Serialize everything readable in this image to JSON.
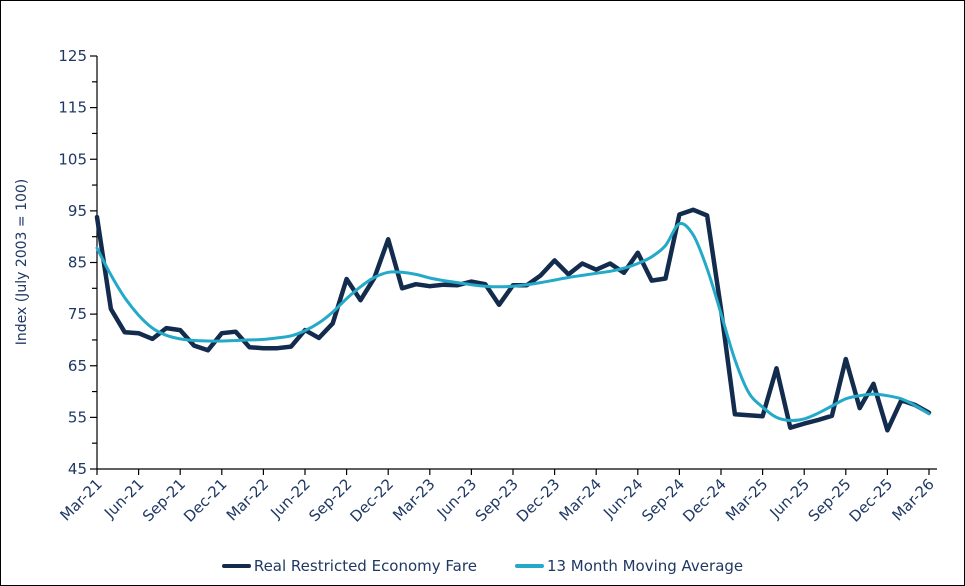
{
  "figure": {
    "background": "#FFFFFF",
    "border_color": "#000000",
    "text_color": "#1F3864"
  },
  "chart_data": {
    "type": "line",
    "title": "",
    "xlabel": "",
    "ylabel": "Index (July 2003 = 100)",
    "ylim": [
      45,
      125
    ],
    "grid": false,
    "legend_position": "bottom-center",
    "y_major_ticks": [
      45,
      55,
      65,
      75,
      85,
      95,
      105,
      115,
      125
    ],
    "y_minor_ticks": [
      50,
      60,
      70,
      80,
      90,
      100,
      110,
      120
    ],
    "x_tick_labels": [
      "Mar-21",
      "Jun-21",
      "Sep-21",
      "Dec-21",
      "Mar-22",
      "Jun-22",
      "Sep-22",
      "Dec-22",
      "Mar-23",
      "Jun-23",
      "Sep-23",
      "Dec-23",
      "Mar-24",
      "Jun-24",
      "Sep-24",
      "Dec-24",
      "Mar-25",
      "Jun-25",
      "Sep-25",
      "Dec-25",
      "Mar-26"
    ],
    "months": [
      "Mar-21",
      "Apr-21",
      "May-21",
      "Jun-21",
      "Jul-21",
      "Aug-21",
      "Sep-21",
      "Oct-21",
      "Nov-21",
      "Dec-21",
      "Jan-22",
      "Feb-22",
      "Mar-22",
      "Apr-22",
      "May-22",
      "Jun-22",
      "Jul-22",
      "Aug-22",
      "Sep-22",
      "Oct-22",
      "Nov-22",
      "Dec-22",
      "Jan-23",
      "Feb-23",
      "Mar-23",
      "Apr-23",
      "May-23",
      "Jun-23",
      "Jul-23",
      "Aug-23",
      "Sep-23",
      "Oct-23",
      "Nov-23",
      "Dec-23",
      "Jan-24",
      "Feb-24",
      "Mar-24",
      "Apr-24",
      "May-24",
      "Jun-24",
      "Jul-24",
      "Aug-24",
      "Sep-24",
      "Oct-24",
      "Nov-24",
      "Dec-24",
      "Jan-25",
      "Feb-25",
      "Mar-25",
      "Apr-25",
      "May-25",
      "Jun-25",
      "Jul-25",
      "Aug-25",
      "Sep-25",
      "Oct-25",
      "Nov-25",
      "Dec-25",
      "Jan-26",
      "Feb-26",
      "Mar-26"
    ],
    "series": [
      {
        "name": "Real Restricted Economy Fare",
        "color": "#132B4D",
        "stroke_width": 4.5,
        "smooth": false,
        "values": [
          93.8,
          76.0,
          71.5,
          71.3,
          70.2,
          72.3,
          71.9,
          68.9,
          68.0,
          71.3,
          71.6,
          68.6,
          68.4,
          68.4,
          68.7,
          71.9,
          70.4,
          73.2,
          81.8,
          77.7,
          82.0,
          89.5,
          80.0,
          80.8,
          80.4,
          80.7,
          80.6,
          81.3,
          80.8,
          76.8,
          80.6,
          80.6,
          82.5,
          85.4,
          82.7,
          84.8,
          83.6,
          84.8,
          83.0,
          86.9,
          81.5,
          81.9,
          94.3,
          95.2,
          94.1,
          76.0,
          55.6,
          55.4,
          55.2,
          64.5,
          53.0,
          53.8,
          54.5,
          55.3,
          66.3,
          56.8,
          61.5,
          52.5,
          58.3,
          57.4,
          55.9
        ]
      },
      {
        "name": "13 Month Moving Average",
        "color": "#25A9C8",
        "stroke_width": 3,
        "smooth": true,
        "values": [
          87.8,
          82.6,
          78.2,
          74.8,
          72.3,
          70.9,
          70.2,
          69.9,
          69.8,
          69.8,
          69.9,
          70.0,
          70.1,
          70.4,
          70.8,
          71.8,
          73.3,
          75.4,
          78.0,
          80.3,
          82.1,
          83.1,
          83.1,
          82.7,
          82.0,
          81.5,
          81.1,
          80.7,
          80.4,
          80.3,
          80.4,
          80.7,
          81.1,
          81.6,
          82.1,
          82.5,
          82.9,
          83.3,
          83.9,
          84.8,
          86.1,
          88.3,
          92.5,
          90.3,
          83.8,
          75.1,
          66.2,
          59.8,
          57.0,
          55.0,
          54.4,
          54.7,
          55.8,
          57.2,
          58.6,
          59.2,
          59.5,
          59.2,
          58.6,
          57.3,
          55.7
        ]
      }
    ]
  }
}
